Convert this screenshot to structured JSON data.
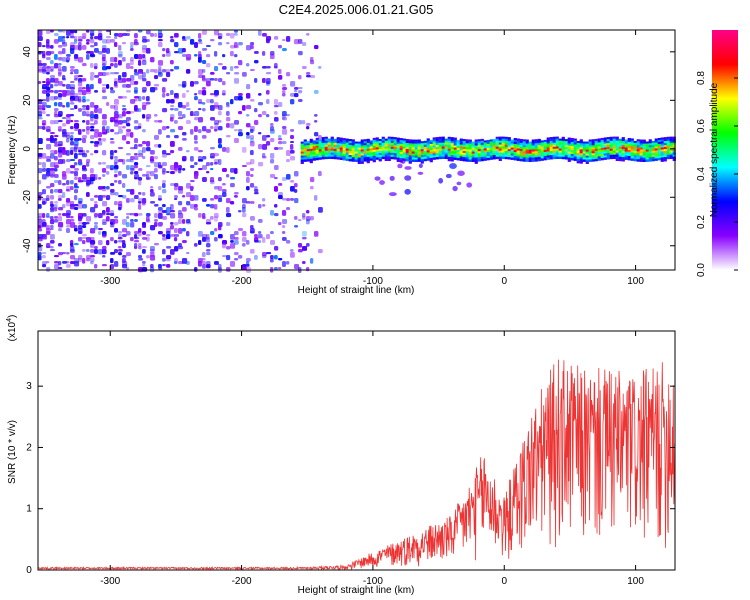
{
  "title": "C2E4.2025.006.01.21.G05",
  "chart_data": [
    {
      "type": "heatmap",
      "title": "C2E4.2025.006.01.21.G05",
      "xlabel": "Height of straight line (km)",
      "ylabel": "Frequency (Hz)",
      "xlim": [
        -355,
        130
      ],
      "ylim": [
        -50,
        49
      ],
      "x_ticks": [
        "-300",
        "-200",
        "-100",
        "0",
        "100"
      ],
      "x_tick_values": [
        -300,
        -200,
        -100,
        0,
        100
      ],
      "y_ticks": [
        "-40",
        "-20",
        "0",
        "20",
        "40"
      ],
      "y_tick_values": [
        -40,
        -20,
        0,
        20,
        40
      ],
      "colorbar": {
        "label": "Normalized spectral amplitude",
        "range": [
          0,
          1
        ],
        "ticks": [
          "0.0",
          "0.2",
          "0.4",
          "0.6",
          "0.8"
        ],
        "tick_values": [
          0.0,
          0.2,
          0.4,
          0.6,
          0.8
        ],
        "colors": [
          "#ffffff",
          "#8800ff",
          "#0000ff",
          "#00ffff",
          "#00ff00",
          "#ffff00",
          "#ff0000",
          "#ff0088"
        ]
      },
      "features": {
        "noise_region_x": [
          -355,
          -140
        ],
        "noise_amplitude": [
          0.05,
          0.3
        ],
        "signal_band_start_x": -155,
        "signal_band_center_hz": 0,
        "signal_band_halfwidth_hz": 4,
        "signal_amplitude": [
          0.3,
          0.9
        ]
      },
      "grid": false,
      "legend": "colorbar-right"
    },
    {
      "type": "line",
      "xlabel": "Height of straight line (km)",
      "ylabel": "SNR (10 * v/v)",
      "y_multiplier": "(x10",
      "y_multiplier_exp": "4",
      "y_multiplier_close": ")",
      "xlim": [
        -355,
        130
      ],
      "ylim": [
        0,
        3.9
      ],
      "x_ticks": [
        "-300",
        "-200",
        "-100",
        "0",
        "100"
      ],
      "x_tick_values": [
        -300,
        -200,
        -100,
        0,
        100
      ],
      "y_ticks": [
        "0",
        "1",
        "2",
        "3"
      ],
      "y_tick_values": [
        0,
        1,
        2,
        3
      ],
      "line_color": "#ee3333",
      "envelope_x": [
        -355,
        -150,
        -120,
        -100,
        -80,
        -60,
        -40,
        -25,
        -15,
        0,
        20,
        40,
        60,
        80,
        100,
        120,
        130
      ],
      "envelope_y": [
        0.05,
        0.05,
        0.08,
        0.3,
        0.5,
        0.7,
        0.9,
        1.5,
        2.0,
        1.2,
        2.6,
        3.5,
        3.3,
        3.3,
        3.2,
        3.4,
        3.6
      ],
      "grid": false
    }
  ]
}
